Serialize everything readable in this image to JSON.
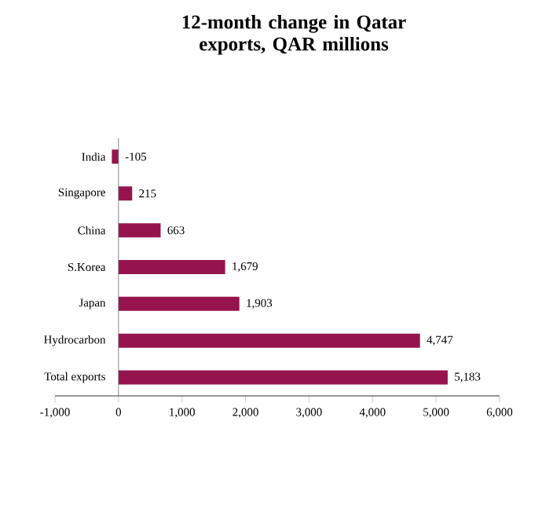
{
  "chart_data": {
    "type": "bar",
    "orientation": "horizontal",
    "title": "12-month change in Qatar exports, QAR millions",
    "categories": [
      "India",
      "Singapore",
      "China",
      "S.Korea",
      "Japan",
      "Hydrocarbon",
      "Total exports"
    ],
    "values": [
      -105,
      215,
      663,
      1679,
      1903,
      4747,
      5183
    ],
    "value_labels": [
      "-105",
      "215",
      "663",
      "1,679",
      "1,903",
      "4,747",
      "5,183"
    ],
    "color": "#96144e",
    "xlim": [
      -1000,
      6000
    ],
    "xticks": [
      {
        "value": -1000,
        "label": "-1,000"
      },
      0,
      {
        "value": 1000,
        "label": "1,000"
      },
      {
        "value": 2000,
        "label": "2,000"
      },
      {
        "value": 3000,
        "label": "3,000"
      },
      {
        "value": 4000,
        "label": "4,000"
      },
      {
        "value": 5000,
        "label": "5,000"
      },
      {
        "value": 6000,
        "label": "6,000"
      }
    ]
  }
}
